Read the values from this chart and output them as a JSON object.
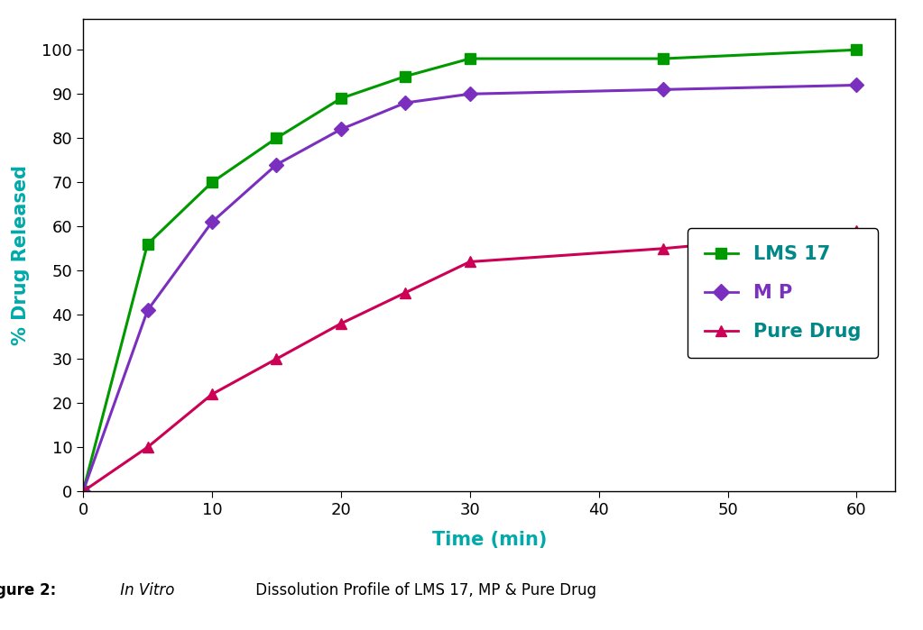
{
  "time": [
    0,
    5,
    10,
    15,
    20,
    25,
    30,
    45,
    60
  ],
  "lms17": [
    0,
    56,
    70,
    80,
    89,
    94,
    98,
    98,
    100
  ],
  "mp": [
    0,
    41,
    61,
    74,
    82,
    88,
    90,
    91,
    92
  ],
  "pure_drug": [
    0,
    10,
    22,
    30,
    38,
    45,
    52,
    55,
    59
  ],
  "lms17_color": "#009900",
  "mp_color": "#7b2fbe",
  "pure_drug_color": "#cc0055",
  "xlabel": "Time (min)",
  "ylabel": "% Drug Released",
  "xlabel_color": "#00aaaa",
  "ylabel_color": "#00aaaa",
  "legend_lms17": "LMS 17",
  "legend_mp": "M P",
  "legend_pure_drug": "Pure Drug",
  "legend_text_color_lms17": "#008888",
  "legend_text_color_mp": "#7b2fbe",
  "legend_text_color_pure_drug": "#008888",
  "xlim": [
    0,
    63
  ],
  "ylim": [
    0,
    107
  ],
  "yticks": [
    0,
    10,
    20,
    30,
    40,
    50,
    60,
    70,
    80,
    90,
    100
  ],
  "xticks": [
    0,
    10,
    20,
    30,
    40,
    50,
    60
  ],
  "bg_color": "#ffffff",
  "tick_fontsize": 13,
  "label_fontsize": 15,
  "legend_fontsize": 15
}
